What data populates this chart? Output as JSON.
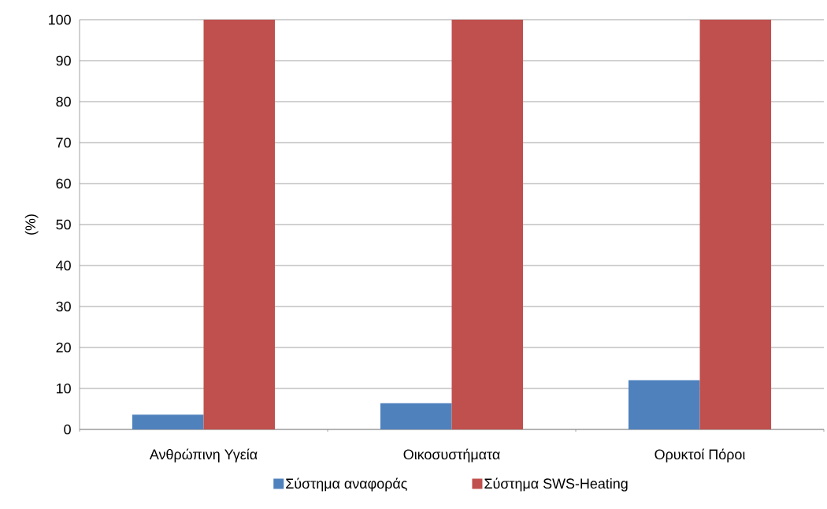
{
  "chart_data": {
    "type": "bar",
    "ylabel": "(%)",
    "categories": [
      "Ανθρώπινη Υγεία",
      "Οικοσυστήματα",
      "Ορυκτοί Πόροι"
    ],
    "series": [
      {
        "name": "Σύστημα αναφοράς",
        "color": "#4f81bd",
        "values": [
          3.6,
          6.4,
          12.0
        ]
      },
      {
        "name": "Σύστημα SWS-Heating",
        "color": "#c0504d",
        "values": [
          100,
          100,
          100
        ]
      }
    ],
    "ylim": [
      0,
      100
    ],
    "yticks": [
      0,
      10,
      20,
      30,
      40,
      50,
      60,
      70,
      80,
      90,
      100
    ],
    "grid": "y",
    "legend": "bottom"
  }
}
